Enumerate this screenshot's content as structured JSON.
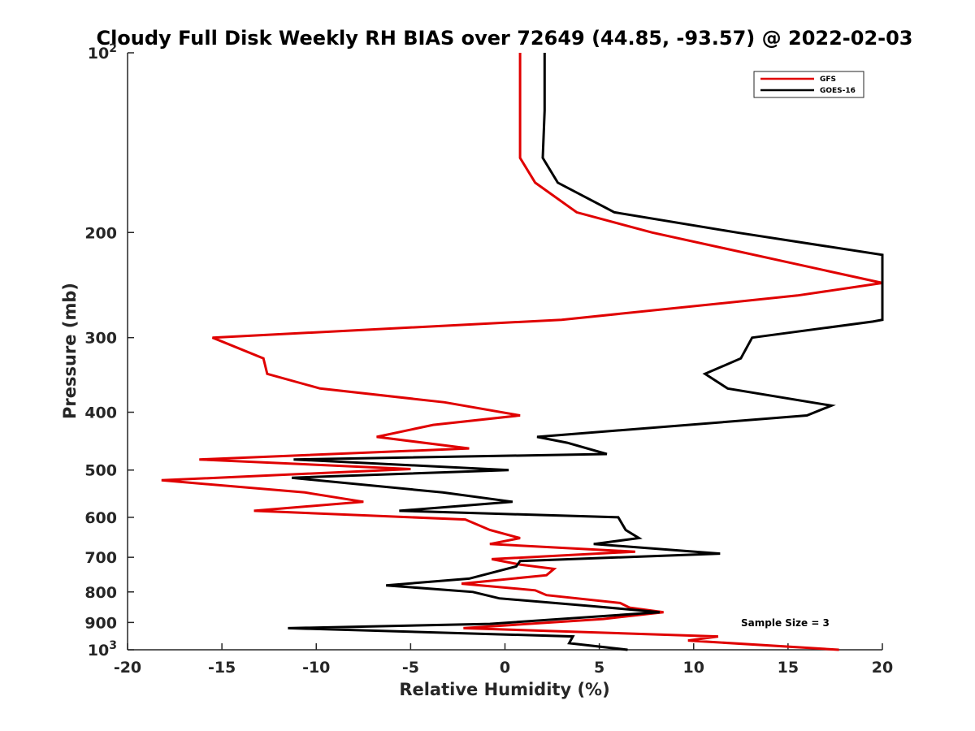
{
  "chart_data": {
    "type": "line",
    "title": "Cloudy Full Disk Weekly RH BIAS over 72649 (44.85, -93.57) @ 2022-02-03",
    "xlabel": "Relative Humidity (%)",
    "ylabel": "Pressure (mb)",
    "xlim": [
      -20,
      20
    ],
    "ylim": [
      100,
      1000
    ],
    "y_scale": "log",
    "y_reversed": true,
    "x_ticks": [
      -20,
      -15,
      -10,
      -5,
      0,
      5,
      10,
      15,
      20
    ],
    "x_tick_labels": [
      "-20",
      "-15",
      "-10",
      "-5",
      "0",
      "5",
      "10",
      "15",
      "20"
    ],
    "y_ticks": [
      100,
      200,
      300,
      400,
      500,
      600,
      700,
      800,
      900,
      1000
    ],
    "y_tick_labels": [
      "10^2",
      "200",
      "300",
      "400",
      "500",
      "600",
      "700",
      "800",
      "900",
      "10^3"
    ],
    "grid": false,
    "legend_position": "top-right",
    "annotation": "Sample Size = 3",
    "series": [
      {
        "name": "GFS",
        "color": "#e00000",
        "points": [
          [
            0.8,
            100
          ],
          [
            0.8,
            125
          ],
          [
            0.8,
            150
          ],
          [
            1.6,
            165
          ],
          [
            3.8,
            185
          ],
          [
            7.8,
            200
          ],
          [
            20,
            243
          ],
          [
            15.5,
            255
          ],
          [
            3,
            280
          ],
          [
            -15.5,
            300
          ],
          [
            -12.8,
            325
          ],
          [
            -12.6,
            345
          ],
          [
            -9.8,
            365
          ],
          [
            -3.2,
            385
          ],
          [
            0.8,
            405
          ],
          [
            -3.8,
            420
          ],
          [
            -6.8,
            440
          ],
          [
            -1.9,
            460
          ],
          [
            -16.2,
            480
          ],
          [
            -5,
            498
          ],
          [
            -18.2,
            520
          ],
          [
            -10.6,
            545
          ],
          [
            -7.5,
            565
          ],
          [
            -13.3,
            585
          ],
          [
            -2.1,
            605
          ],
          [
            -0.8,
            630
          ],
          [
            0.8,
            650
          ],
          [
            -0.8,
            665
          ],
          [
            6.9,
            685
          ],
          [
            -0.7,
            705
          ],
          [
            0.8,
            720
          ],
          [
            2.6,
            732
          ],
          [
            2.2,
            750
          ],
          [
            -2.3,
            775
          ],
          [
            1.6,
            795
          ],
          [
            2.2,
            810
          ],
          [
            6.1,
            835
          ],
          [
            6.6,
            850
          ],
          [
            8.4,
            865
          ],
          [
            5.2,
            888
          ],
          [
            -2.2,
            920
          ],
          [
            11.3,
            950
          ],
          [
            9.7,
            965
          ],
          [
            17.7,
            1000
          ]
        ]
      },
      {
        "name": "GOES-16",
        "color": "#000000",
        "points": [
          [
            2.1,
            100
          ],
          [
            2.1,
            125
          ],
          [
            2.0,
            150
          ],
          [
            2.8,
            165
          ],
          [
            5.8,
            185
          ],
          [
            12.3,
            200
          ],
          [
            20,
            218
          ],
          [
            20,
            280
          ],
          [
            19.5,
            282
          ],
          [
            13.1,
            300
          ],
          [
            12.5,
            325
          ],
          [
            10.6,
            345
          ],
          [
            11.8,
            365
          ],
          [
            17.3,
            390
          ],
          [
            16,
            405
          ],
          [
            1.7,
            440
          ],
          [
            3.3,
            450
          ],
          [
            5.4,
            470
          ],
          [
            -11.2,
            480
          ],
          [
            0.2,
            500
          ],
          [
            -11.3,
            515
          ],
          [
            -3.3,
            545
          ],
          [
            0.4,
            565
          ],
          [
            -5.6,
            585
          ],
          [
            6,
            600
          ],
          [
            6.4,
            630
          ],
          [
            7.1,
            650
          ],
          [
            4.7,
            665
          ],
          [
            11.4,
            690
          ],
          [
            0.8,
            710
          ],
          [
            0.6,
            725
          ],
          [
            -1.9,
            760
          ],
          [
            -6.3,
            780
          ],
          [
            -1.7,
            800
          ],
          [
            -0.3,
            820
          ],
          [
            4.6,
            845
          ],
          [
            8.2,
            865
          ],
          [
            -0.8,
            905
          ],
          [
            -11.5,
            920
          ],
          [
            3.6,
            950
          ],
          [
            3.4,
            975
          ],
          [
            6.5,
            1000
          ]
        ]
      }
    ]
  }
}
